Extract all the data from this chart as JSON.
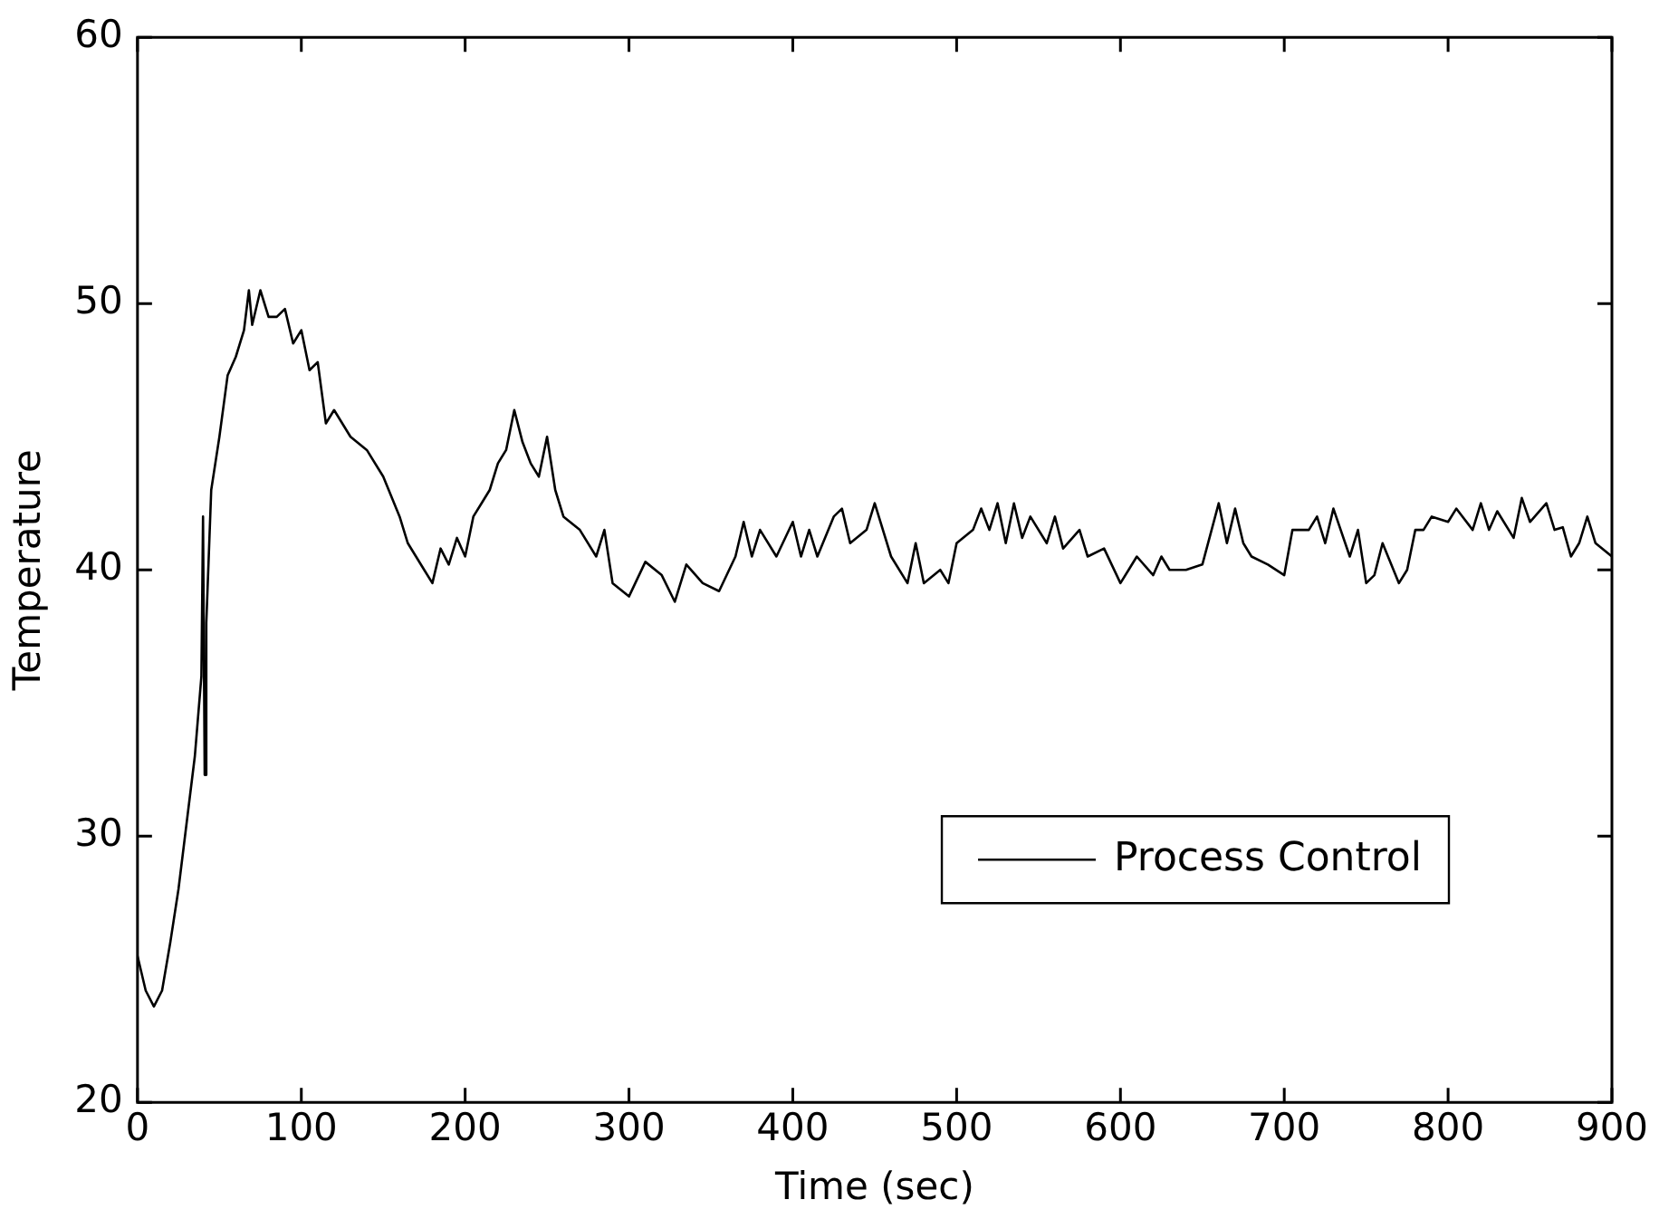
{
  "chart_data": {
    "type": "line",
    "xlabel": "Time (sec)",
    "ylabel": "Temperature",
    "xlim": [
      0,
      900
    ],
    "ylim": [
      20,
      60
    ],
    "xticks": [
      0,
      100,
      200,
      300,
      400,
      500,
      600,
      700,
      800,
      900
    ],
    "yticks": [
      20,
      30,
      40,
      50,
      60
    ],
    "grid": false,
    "legend": "bottom right",
    "marker": "none",
    "line_style": "solid",
    "series": [
      {
        "name": "Process Control",
        "color": "#000000",
        "x": [
          0,
          5,
          10,
          15,
          20,
          25,
          30,
          35,
          39,
          40,
          41,
          42,
          45,
          50,
          55,
          60,
          65,
          68,
          70,
          75,
          80,
          85,
          90,
          95,
          100,
          105,
          110,
          115,
          120,
          125,
          130,
          140,
          150,
          160,
          165,
          170,
          175,
          180,
          185,
          190,
          195,
          200,
          205,
          210,
          215,
          220,
          225,
          230,
          235,
          240,
          245,
          250,
          255,
          260,
          270,
          280,
          285,
          290,
          300,
          310,
          320,
          328,
          335,
          345,
          355,
          365,
          370,
          375,
          380,
          390,
          400,
          405,
          410,
          415,
          425,
          430,
          435,
          445,
          450,
          460,
          470,
          475,
          480,
          490,
          495,
          500,
          510,
          515,
          520,
          525,
          530,
          535,
          540,
          545,
          555,
          560,
          565,
          575,
          580,
          590,
          600,
          605,
          610,
          620,
          625,
          630,
          640,
          650,
          660,
          665,
          670,
          675,
          680,
          690,
          700,
          705,
          715,
          720,
          725,
          730,
          740,
          745,
          750,
          755,
          760,
          770,
          775,
          780,
          785,
          790,
          800,
          805,
          815,
          820,
          825,
          830,
          840,
          845,
          850,
          860,
          865,
          870,
          875,
          880,
          885,
          890,
          900
        ],
        "values": [
          25.5,
          24.2,
          23.6,
          24.2,
          26,
          28,
          30.5,
          33,
          36,
          42,
          32.3,
          38,
          43,
          45,
          47.3,
          48,
          49,
          50.5,
          49.2,
          50.5,
          49.5,
          49.5,
          49.8,
          48.5,
          49,
          47.5,
          47.8,
          45.5,
          46,
          45.5,
          45,
          44.5,
          43.5,
          42,
          41,
          40.5,
          40,
          39.5,
          40.8,
          40.2,
          41.2,
          40.5,
          42,
          42.5,
          43,
          44,
          44.5,
          46,
          44.8,
          44,
          43.5,
          45,
          43,
          42,
          41.5,
          40.5,
          41.5,
          39.5,
          39,
          40.3,
          39.8,
          38.8,
          40.2,
          39.5,
          39.2,
          40.5,
          41.8,
          40.5,
          41.5,
          40.5,
          41.8,
          40.5,
          41.5,
          40.5,
          42,
          42.3,
          41,
          41.5,
          42.5,
          40.5,
          39.5,
          41,
          39.5,
          40,
          39.5,
          41,
          41.5,
          42.3,
          41.5,
          42.5,
          41,
          42.5,
          41.2,
          42,
          41,
          42,
          40.8,
          41.5,
          40.5,
          40.8,
          39.5,
          40,
          40.5,
          39.8,
          40.5,
          40,
          40,
          40.2,
          42.5,
          41,
          42.3,
          41,
          40.5,
          40.2,
          39.8,
          41.5,
          41.5,
          42,
          41,
          42.3,
          40.5,
          41.5,
          39.5,
          39.8,
          41,
          39.5,
          40,
          41.5,
          41.5,
          42,
          41.8,
          42.3,
          41.5,
          42.5,
          41.5,
          42.2,
          41.2,
          42.7,
          41.8,
          42.5,
          41.5,
          41.6,
          40.5,
          41,
          42,
          41,
          40.5
        ]
      }
    ]
  }
}
